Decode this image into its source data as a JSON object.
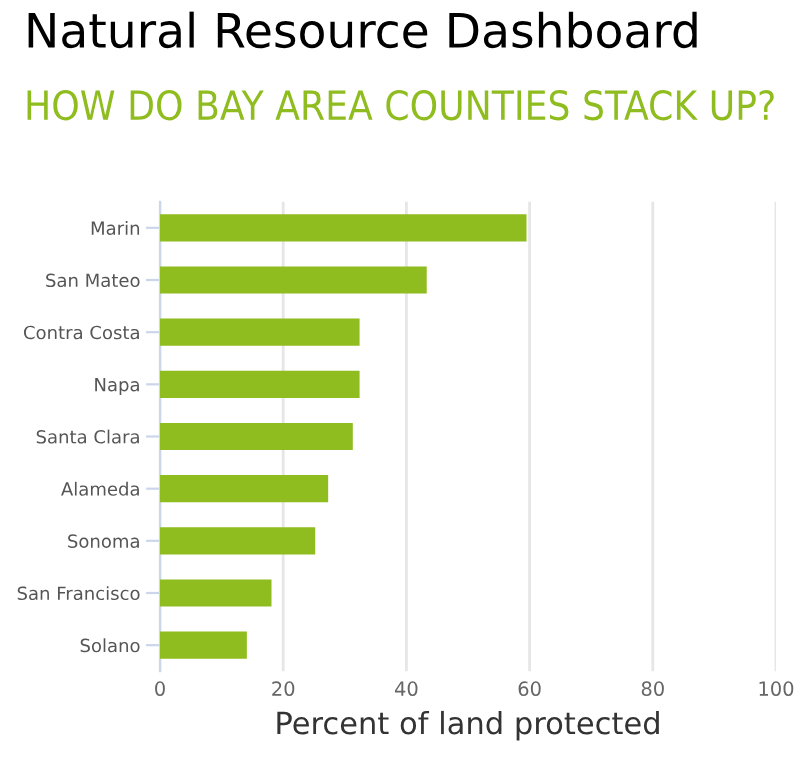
{
  "chart_data": {
    "type": "bar",
    "orientation": "horizontal",
    "title": "Natural Resource Dashboard",
    "subtitle": "HOW DO BAY AREA COUNTIES STACK UP?",
    "xlabel": "Percent of land protected",
    "categories": [
      "Marin",
      "San Mateo",
      "Contra Costa",
      "Napa",
      "Santa Clara",
      "Alameda",
      "Sonoma",
      "San Francisco",
      "Solano"
    ],
    "values": [
      59.5,
      43.3,
      32.4,
      32.4,
      31.3,
      27.3,
      25.2,
      18.1,
      14.1
    ],
    "color": "#8fbc1e",
    "xlim": [
      0,
      100
    ],
    "xticks": [
      0,
      20,
      40,
      60,
      80,
      100
    ],
    "grid": "x"
  }
}
